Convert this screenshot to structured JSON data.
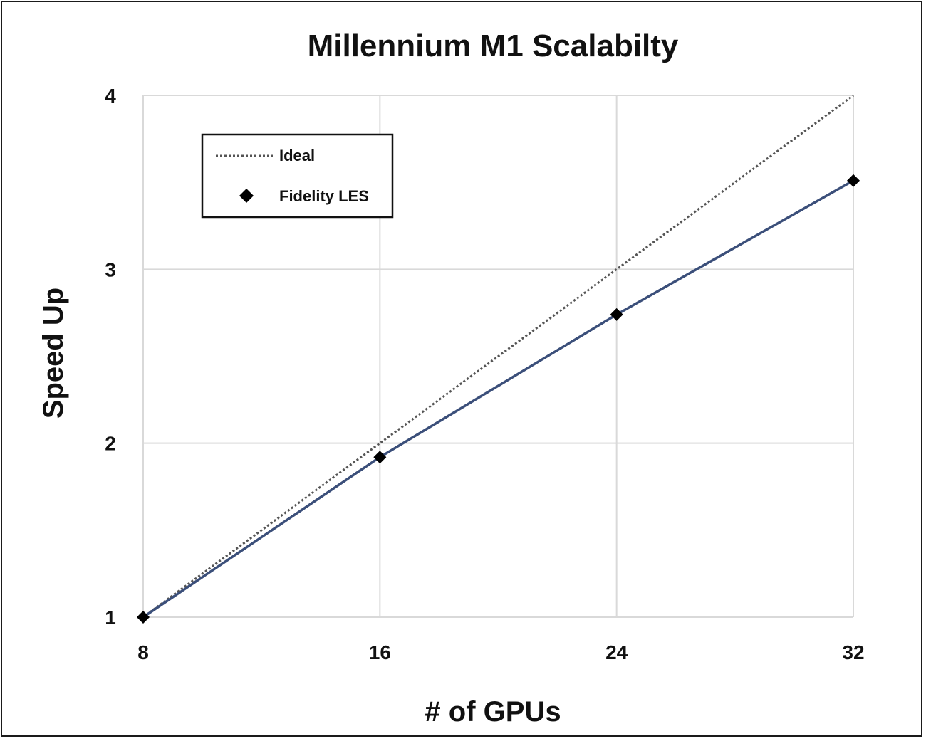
{
  "chart_data": {
    "type": "line",
    "title": "Millennium M1 Scalabilty",
    "xlabel": "# of GPUs",
    "ylabel": "Speed Up",
    "x": [
      8,
      16,
      24,
      32
    ],
    "x_ticks": [
      "8",
      "16",
      "24",
      "32"
    ],
    "y_ticks": [
      "1",
      "2",
      "3",
      "4"
    ],
    "xlim": [
      8,
      32
    ],
    "ylim": [
      1,
      4
    ],
    "grid": true,
    "legend_position": "top-left",
    "series": [
      {
        "name": "Ideal",
        "style": "dotted",
        "color": "#555555",
        "values": [
          1,
          2,
          3,
          4
        ]
      },
      {
        "name": "Fidelity LES",
        "style": "solid-with-diamond-markers",
        "color": "#3b4f7a",
        "marker_color": "#000000",
        "values": [
          1,
          1.92,
          2.74,
          3.51
        ]
      }
    ]
  }
}
